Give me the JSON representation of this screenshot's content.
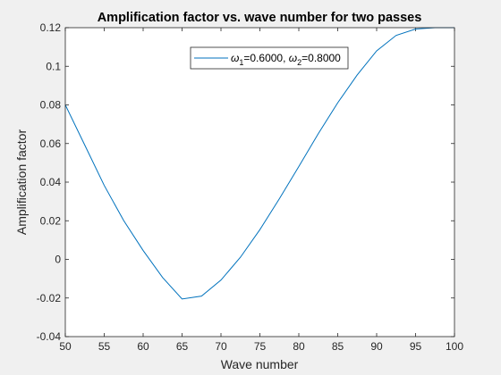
{
  "chart_data": {
    "type": "line",
    "title": "Amplification factor vs. wave number for two passes",
    "xlabel": "Wave number",
    "ylabel": "Amplification factor",
    "xlim": [
      50,
      100
    ],
    "ylim": [
      -0.04,
      0.12
    ],
    "xticks": [
      "50",
      "55",
      "60",
      "65",
      "70",
      "75",
      "80",
      "85",
      "90",
      "95",
      "100"
    ],
    "yticks": [
      "-0.04",
      "-0.02",
      "0",
      "0.02",
      "0.04",
      "0.06",
      "0.08",
      "0.1",
      "0.12"
    ],
    "grid": false,
    "legend_position": "top-right",
    "series": [
      {
        "name": "ω1=0.6000, ω2=0.8000",
        "legend": {
          "pre1": "ω",
          "sub1": "1",
          "mid": "=0.6000, ",
          "pre2": "ω",
          "sub2": "2",
          "post": "=0.8000"
        },
        "color": "#0072BD",
        "x": [
          50,
          52.5,
          55,
          57.5,
          60,
          62.5,
          65,
          67.5,
          70,
          72.5,
          75,
          77.5,
          80,
          82.5,
          85,
          87.5,
          90,
          92.5,
          95,
          97.5,
          100
        ],
        "y": [
          0.08,
          0.0592,
          0.0383,
          0.0201,
          0.0046,
          -0.0094,
          -0.0205,
          -0.019,
          -0.0107,
          0.0011,
          0.0154,
          0.0314,
          0.0481,
          0.0651,
          0.0811,
          0.0955,
          0.108,
          0.116,
          0.1193,
          0.12,
          0.12
        ]
      }
    ]
  }
}
